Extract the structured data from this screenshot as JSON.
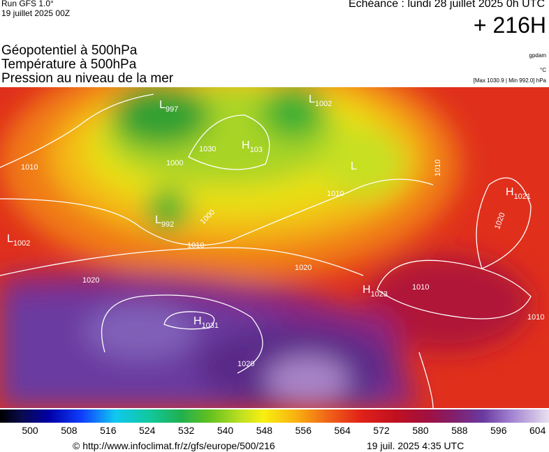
{
  "header": {
    "run": "Run GFS 1.0°",
    "run_date": "19 juillet 2025 00Z",
    "valid": "Echéance : lundi 28 juillet 2025 0h UTC",
    "lead": "+ 216H",
    "fields": [
      "Géopotentiel à 500hPa",
      "Température à 500hPa",
      "Pression au niveau de la mer"
    ],
    "units": [
      "gpdam",
      "°C",
      "[Max 1030.9 | Min 992.0] hPa"
    ]
  },
  "centers": [
    {
      "letter": "L",
      "value": "997"
    },
    {
      "letter": "L",
      "value": "1002"
    },
    {
      "letter": "H",
      "value": "103"
    },
    {
      "letter": "L",
      "value": "992"
    },
    {
      "letter": "L",
      "value": "1002"
    },
    {
      "letter": "H",
      "value": "1021"
    },
    {
      "letter": "H",
      "value": "1023"
    },
    {
      "letter": "H",
      "value": "1031"
    },
    {
      "letter": "L",
      "value": ""
    }
  ],
  "isobar_labels": [
    "1010",
    "1010",
    "1010",
    "1010",
    "1010",
    "1010",
    "1020",
    "1020",
    "1020",
    "1000",
    "1000",
    "1030",
    "1020"
  ],
  "colorbar": {
    "ticks": [
      500,
      508,
      516,
      524,
      532,
      540,
      548,
      556,
      564,
      572,
      580,
      588,
      596,
      604
    ]
  },
  "footer": {
    "source": "© http://www.infoclimat.fr/z/gfs/europe/500/216",
    "generated": "19 juil. 2025  4:35 UTC"
  }
}
